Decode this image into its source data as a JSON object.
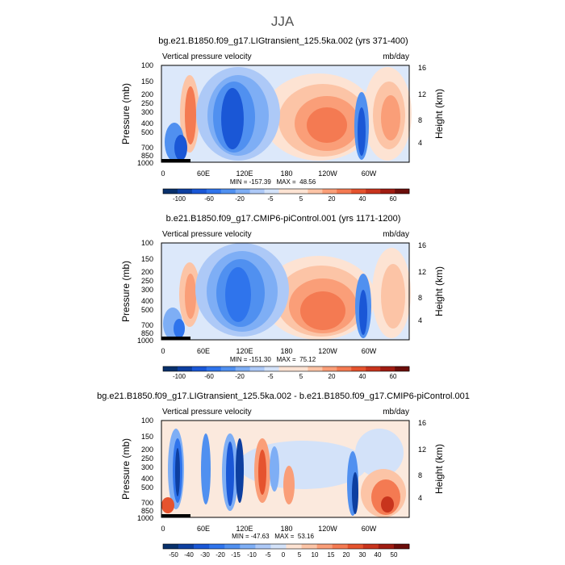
{
  "figure": {
    "season_title": "JJA"
  },
  "chart_data": [
    {
      "type": "heatmap",
      "title": "bg.e21.B1850.f09_g17.LIGtransient_125.5ka.002 (yrs 371-400)",
      "left_label": "Vertical pressure velocity",
      "right_label": "mb/day",
      "ylabel": "Pressure (mb)",
      "ylabel_right": "Height (km)",
      "yticks": [
        "100",
        "150",
        "200",
        "250",
        "300",
        "400",
        "500",
        "700",
        "850",
        "1000"
      ],
      "yticks_right": [
        "16",
        "12",
        "8",
        "4"
      ],
      "xticks": [
        "0",
        "60E",
        "120E",
        "180",
        "120W",
        "60W"
      ],
      "stats": "MIN = -157.39   MAX =  48.56",
      "colorbar": {
        "labels": [
          "-100",
          "-60",
          "-20",
          "-5",
          "5",
          "20",
          "40",
          "60"
        ],
        "levels": [
          -100,
          -80,
          -60,
          -40,
          -20,
          -10,
          -5,
          -1,
          1,
          5,
          10,
          20,
          30,
          40,
          50,
          60
        ]
      }
    },
    {
      "type": "heatmap",
      "title": "b.e21.B1850.f09_g17.CMIP6-piControl.001 (yrs 1171-1200)",
      "left_label": "Vertical pressure velocity",
      "right_label": "mb/day",
      "ylabel": "Pressure (mb)",
      "ylabel_right": "Height (km)",
      "yticks": [
        "100",
        "150",
        "200",
        "250",
        "300",
        "400",
        "500",
        "700",
        "850",
        "1000"
      ],
      "yticks_right": [
        "16",
        "12",
        "8",
        "4"
      ],
      "xticks": [
        "0",
        "60E",
        "120E",
        "180",
        "120W",
        "60W"
      ],
      "stats": "MIN = -151.30   MAX =  75.12",
      "colorbar": {
        "labels": [
          "-100",
          "-60",
          "-20",
          "-5",
          "5",
          "20",
          "40",
          "60"
        ],
        "levels": [
          -100,
          -80,
          -60,
          -40,
          -20,
          -10,
          -5,
          -1,
          1,
          5,
          10,
          20,
          30,
          40,
          50,
          60
        ]
      }
    },
    {
      "type": "heatmap",
      "title": "bg.e21.B1850.f09_g17.LIGtransient_125.5ka.002 - b.e21.B1850.f09_g17.CMIP6-piControl.001",
      "left_label": "Vertical pressure velocity",
      "right_label": "mb/day",
      "ylabel": "Pressure (mb)",
      "ylabel_right": "Height (km)",
      "yticks": [
        "100",
        "150",
        "200",
        "250",
        "300",
        "400",
        "500",
        "700",
        "850",
        "1000"
      ],
      "yticks_right": [
        "16",
        "12",
        "8",
        "4"
      ],
      "xticks": [
        "0",
        "60E",
        "120E",
        "180",
        "120W",
        "60W"
      ],
      "stats": "MIN = -47.63   MAX =  53.16",
      "colorbar": {
        "labels": [
          "-50",
          "-40",
          "-30",
          "-20",
          "-15",
          "-10",
          "-5",
          "0",
          "5",
          "10",
          "15",
          "20",
          "30",
          "40",
          "50"
        ],
        "levels": [
          -50,
          -40,
          -30,
          -20,
          -15,
          -10,
          -5,
          0,
          5,
          10,
          15,
          20,
          30,
          40,
          50
        ]
      }
    }
  ],
  "palette": {
    "cold": [
      "#08306b",
      "#0d3fa0",
      "#1a57d6",
      "#2f74ec",
      "#5090f0",
      "#7eaef5",
      "#adc9f7",
      "#d3e2f9"
    ],
    "warm": [
      "#fde3d3",
      "#fcc4a6",
      "#fa9e78",
      "#f47a52",
      "#e5532e",
      "#c8341d",
      "#a01c12",
      "#6b0d0a"
    ]
  }
}
